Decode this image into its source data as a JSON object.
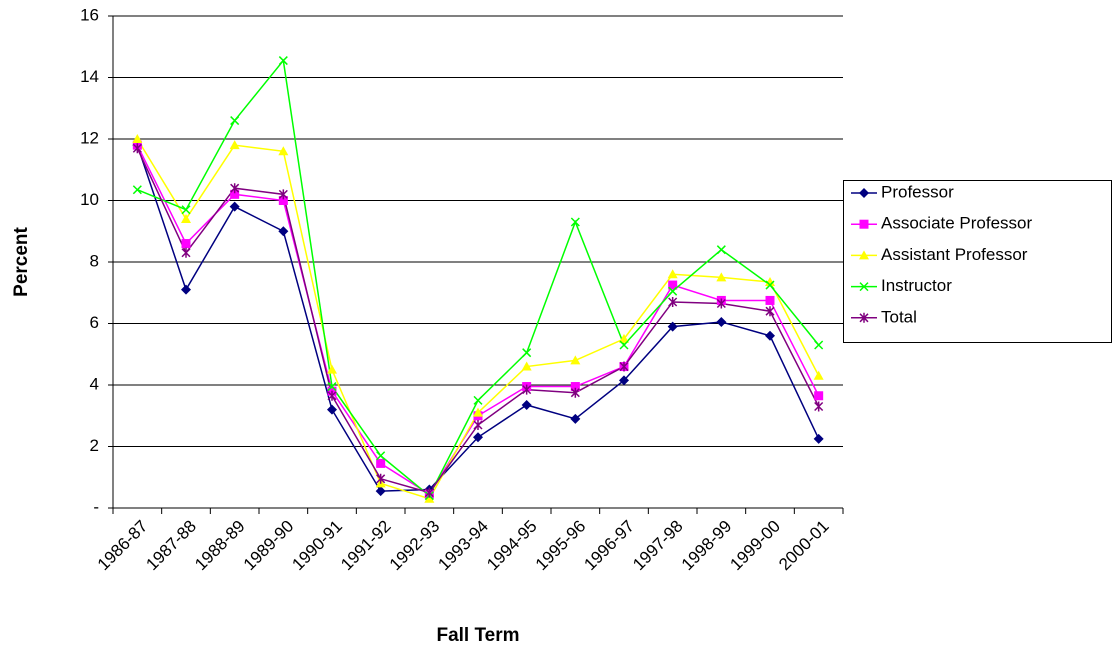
{
  "chart_data": {
    "type": "line",
    "x_label": "Fall Term",
    "y_label": "Percent",
    "categories": [
      "1986-87",
      "1987-88",
      "1988-89",
      "1989-90",
      "1990-91",
      "1991-92",
      "1992-93",
      "1993-94",
      "1994-95",
      "1995-96",
      "1996-97",
      "1997-98",
      "1998-99",
      "1999-00",
      "2000-01"
    ],
    "series": [
      {
        "name": "Professor",
        "color": "#000080",
        "marker": "diamond",
        "values": [
          11.8,
          7.1,
          9.8,
          9.0,
          3.2,
          0.55,
          0.6,
          2.3,
          3.35,
          2.9,
          4.15,
          5.9,
          6.05,
          5.6,
          2.25
        ]
      },
      {
        "name": "Associate Professor",
        "color": "#ff00ff",
        "marker": "square",
        "values": [
          11.8,
          8.6,
          10.2,
          10.0,
          3.8,
          1.45,
          0.45,
          3.0,
          3.95,
          3.95,
          4.6,
          7.25,
          6.75,
          6.75,
          3.65
        ]
      },
      {
        "name": "Assistant Professor",
        "color": "#ffff00",
        "marker": "triangle",
        "values": [
          12.0,
          9.4,
          11.8,
          11.6,
          4.5,
          0.8,
          0.3,
          3.1,
          4.6,
          4.8,
          5.5,
          7.6,
          7.5,
          7.35,
          4.3
        ]
      },
      {
        "name": "Instructor",
        "color": "#00ff00",
        "marker": "x",
        "values": [
          10.35,
          9.7,
          12.6,
          14.55,
          3.95,
          1.7,
          0.4,
          3.5,
          5.05,
          9.3,
          5.3,
          7.05,
          8.4,
          7.25,
          5.3
        ]
      },
      {
        "name": "Total",
        "color": "#800080",
        "marker": "star",
        "values": [
          11.7,
          8.3,
          10.4,
          10.2,
          3.65,
          0.95,
          0.5,
          2.7,
          3.85,
          3.75,
          4.6,
          6.7,
          6.65,
          6.4,
          3.3
        ]
      }
    ],
    "ylim": [
      0,
      16
    ],
    "yticks": [
      {
        "value": 0,
        "label": "-"
      },
      2,
      4,
      6,
      8,
      10,
      12,
      14,
      16
    ],
    "grid": true,
    "legend": "right"
  }
}
